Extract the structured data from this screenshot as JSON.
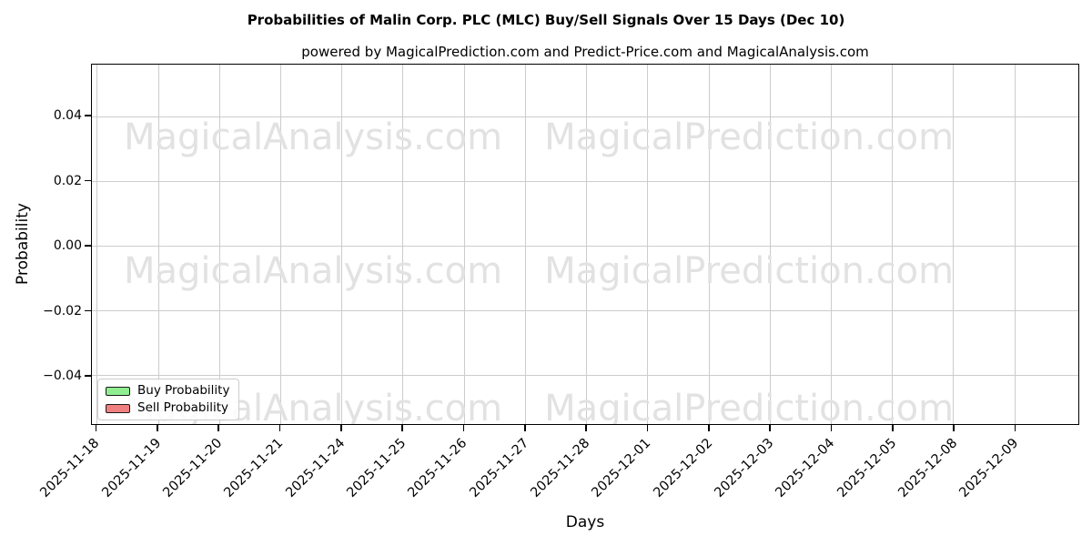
{
  "figure": {
    "suptitle": "Probabilities of Malin Corp. PLC (MLC) Buy/Sell Signals Over 15 Days (Dec 10)",
    "axes_title": "powered by MagicalPrediction.com and Predict-Price.com and MagicalAnalysis.com"
  },
  "watermarks": {
    "left_text": "MagicalAnalysis.com",
    "right_text": "MagicalPrediction.com",
    "color": "#e2e2e2"
  },
  "chart_data": {
    "type": "line",
    "title": "Probabilities of Malin Corp. PLC (MLC) Buy/Sell Signals Over 15 Days (Dec 10)",
    "subtitle": "powered by MagicalPrediction.com and Predict-Price.com and MagicalAnalysis.com",
    "xlabel": "Days",
    "ylabel": "Probability",
    "categories": [
      "2025-11-18",
      "2025-11-19",
      "2025-11-20",
      "2025-11-21",
      "2025-11-24",
      "2025-11-25",
      "2025-11-26",
      "2025-11-27",
      "2025-11-28",
      "2025-12-01",
      "2025-12-02",
      "2025-12-03",
      "2025-12-04",
      "2025-12-05",
      "2025-12-08",
      "2025-12-09"
    ],
    "yticks": [
      "0.04",
      "0.02",
      "0.00",
      "−0.02",
      "−0.04"
    ],
    "ytick_values": [
      0.04,
      0.02,
      0.0,
      -0.02,
      -0.04
    ],
    "ylim": [
      -0.056,
      0.056
    ],
    "grid": true,
    "grid_color": "#cccccc",
    "legend_position": "lower left",
    "series": [
      {
        "name": "Buy Probability",
        "color": "#90EE90",
        "values": []
      },
      {
        "name": "Sell Probability",
        "color": "#F08080",
        "values": []
      }
    ],
    "note": "no data series lines are visible in the plot area"
  },
  "legend": {
    "items": [
      {
        "label": "Buy Probability",
        "color": "#90EE90"
      },
      {
        "label": "Sell Probability",
        "color": "#F08080"
      }
    ]
  }
}
